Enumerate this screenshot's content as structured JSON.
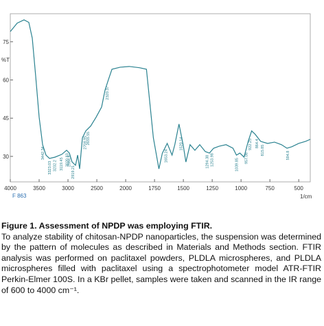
{
  "chart_data": {
    "type": "line",
    "y_label": "%T",
    "x_label": "1/cm",
    "sample_label": "F 863",
    "color": "#2a8290",
    "xlim": [
      4000,
      400
    ],
    "xticks": [
      4000,
      3500,
      3000,
      2500,
      2000,
      1750,
      1500,
      1250,
      1000,
      750,
      500
    ],
    "x_scale": {
      "break": 2000,
      "factor": 2
    },
    "ylim": [
      20,
      86
    ],
    "yticks": [
      30,
      45,
      60,
      75
    ],
    "x": [
      4000,
      3881,
      3762,
      3679,
      3619,
      3560,
      3500,
      3440,
      3381,
      3321,
      3226,
      3107,
      3024,
      2976,
      2929,
      2869,
      2833,
      2798,
      2750,
      2691,
      2607,
      2512,
      2417,
      2357,
      2298,
      2238,
      2095,
      1970,
      1880,
      1820,
      1790,
      1760,
      1712,
      1682,
      1640,
      1598,
      1574,
      1538,
      1502,
      1478,
      1442,
      1400,
      1358,
      1310,
      1274,
      1238,
      1190,
      1130,
      1070,
      1040,
      1010,
      974,
      938,
      908,
      878,
      830,
      770,
      710,
      650,
      602,
      560,
      500,
      440,
      400
    ],
    "values": [
      79.0,
      82.3,
      83.6,
      82.6,
      76.4,
      61.5,
      45.4,
      34.6,
      30.5,
      29.2,
      29.7,
      30.8,
      32.4,
      31.3,
      27.8,
      26.5,
      30.5,
      25.1,
      37.3,
      40.0,
      41.9,
      45.4,
      49.4,
      56.1,
      60.2,
      64.2,
      65.0,
      65.3,
      64.8,
      64.2,
      50.8,
      37.3,
      25.1,
      31.3,
      35.1,
      30.5,
      34.6,
      42.7,
      34.6,
      27.8,
      34.6,
      32.4,
      34.6,
      31.9,
      31.3,
      33.2,
      34.0,
      34.6,
      33.2,
      30.5,
      31.3,
      29.7,
      35.9,
      40.0,
      38.7,
      35.9,
      35.1,
      35.6,
      34.6,
      33.2,
      33.8,
      35.1,
      35.9,
      36.7
    ],
    "peak_labels": [
      3442.34,
      3323.03,
      3232.2,
      3119.45,
      3020.83,
      2984.8,
      2919.21,
      2708.95,
      2655.55,
      2320.37,
      1653.24,
      1520.14,
      1294.38,
      1253.98,
      1039.85,
      957.08,
      922.25,
      864.4,
      815.85,
      594.8
    ]
  },
  "caption": {
    "title": "Figure 1. Assessment of NPDP was employing FTIR.",
    "text": "To analyze stability of chitosan-NPDP nanoparticles, the suspension was determined by the pattern of molecules as described in Materials and Methods section. FTIR analysis was performed on paclitaxel powders, PLDLA microspheres, and PLDLA microspheres filled with paclitaxel using a spectrophotometer model ATR-FTIR Perkin-Elmer 100S. In a KBr pellet, samples were taken and scanned in the IR range of 600 to 4000 cm⁻¹."
  }
}
